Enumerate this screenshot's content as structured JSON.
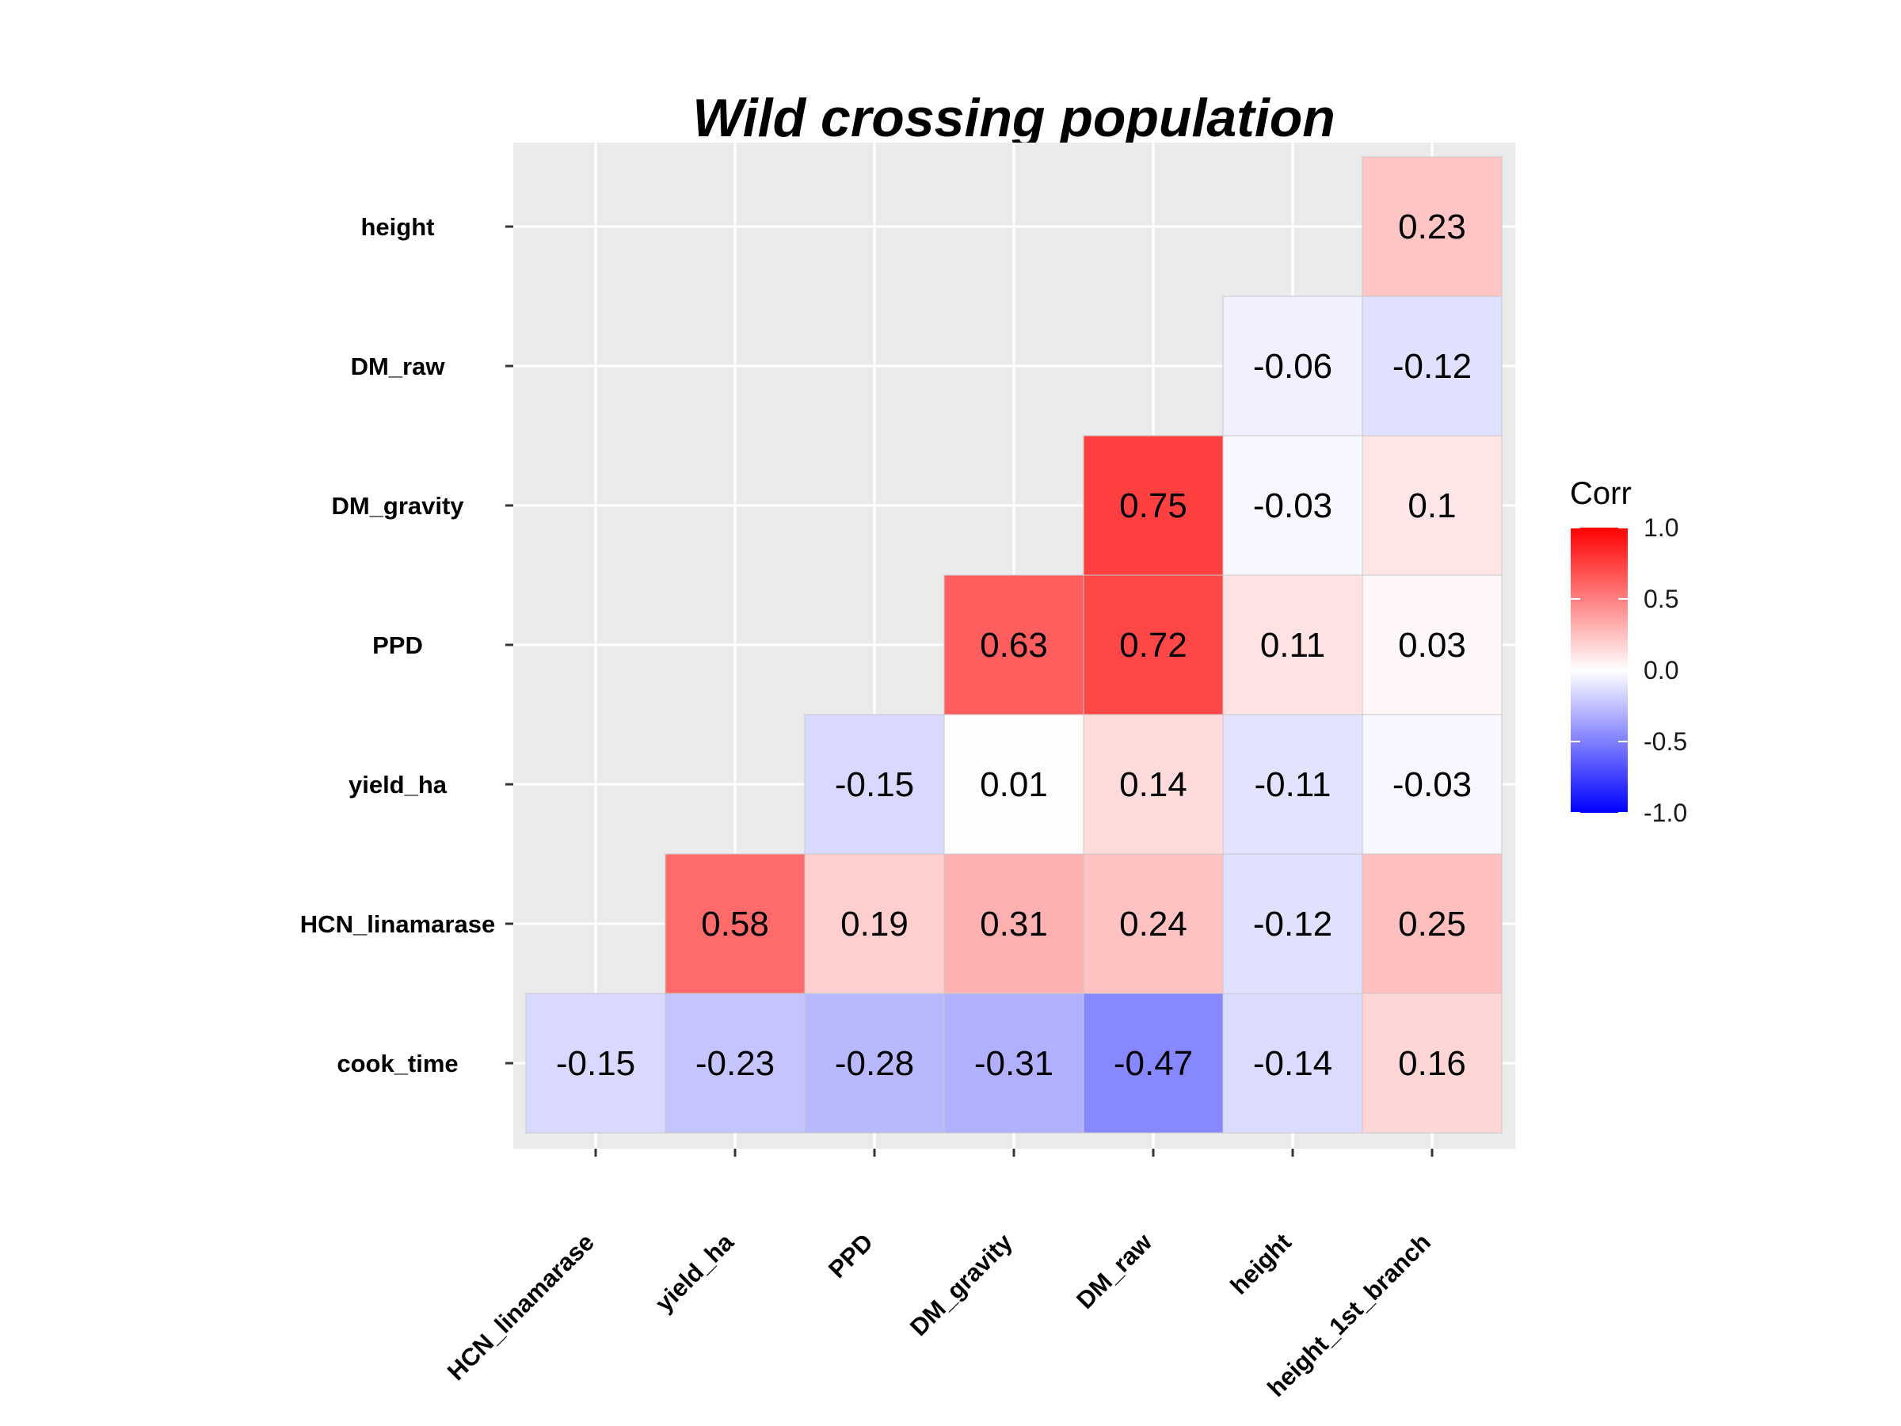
{
  "chart_data": {
    "type": "heatmap",
    "title": "Wild crossing population",
    "x_categories": [
      "HCN_linamarase",
      "yield_ha",
      "PPD",
      "DM_gravity",
      "DM_raw",
      "height",
      "height_1st_branch"
    ],
    "y_categories": [
      "cook_time",
      "HCN_linamarase",
      "yield_ha",
      "PPD",
      "DM_gravity",
      "DM_raw",
      "height"
    ],
    "cells": [
      {
        "x": "HCN_linamarase",
        "y": "cook_time",
        "value": -0.15,
        "label": "-0.15"
      },
      {
        "x": "yield_ha",
        "y": "cook_time",
        "value": -0.23,
        "label": "-0.23"
      },
      {
        "x": "PPD",
        "y": "cook_time",
        "value": -0.28,
        "label": "-0.28"
      },
      {
        "x": "DM_gravity",
        "y": "cook_time",
        "value": -0.31,
        "label": "-0.31"
      },
      {
        "x": "DM_raw",
        "y": "cook_time",
        "value": -0.47,
        "label": "-0.47"
      },
      {
        "x": "height",
        "y": "cook_time",
        "value": -0.14,
        "label": "-0.14"
      },
      {
        "x": "height_1st_branch",
        "y": "cook_time",
        "value": 0.16,
        "label": "0.16"
      },
      {
        "x": "yield_ha",
        "y": "HCN_linamarase",
        "value": 0.58,
        "label": "0.58"
      },
      {
        "x": "PPD",
        "y": "HCN_linamarase",
        "value": 0.19,
        "label": "0.19"
      },
      {
        "x": "DM_gravity",
        "y": "HCN_linamarase",
        "value": 0.31,
        "label": "0.31"
      },
      {
        "x": "DM_raw",
        "y": "HCN_linamarase",
        "value": 0.24,
        "label": "0.24"
      },
      {
        "x": "height",
        "y": "HCN_linamarase",
        "value": -0.12,
        "label": "-0.12"
      },
      {
        "x": "height_1st_branch",
        "y": "HCN_linamarase",
        "value": 0.25,
        "label": "0.25"
      },
      {
        "x": "PPD",
        "y": "yield_ha",
        "value": -0.15,
        "label": "-0.15"
      },
      {
        "x": "DM_gravity",
        "y": "yield_ha",
        "value": 0.01,
        "label": "0.01"
      },
      {
        "x": "DM_raw",
        "y": "yield_ha",
        "value": 0.14,
        "label": "0.14"
      },
      {
        "x": "height",
        "y": "yield_ha",
        "value": -0.11,
        "label": "-0.11"
      },
      {
        "x": "height_1st_branch",
        "y": "yield_ha",
        "value": -0.03,
        "label": "-0.03"
      },
      {
        "x": "DM_gravity",
        "y": "PPD",
        "value": 0.63,
        "label": "0.63"
      },
      {
        "x": "DM_raw",
        "y": "PPD",
        "value": 0.72,
        "label": "0.72"
      },
      {
        "x": "height",
        "y": "PPD",
        "value": 0.11,
        "label": "0.11"
      },
      {
        "x": "height_1st_branch",
        "y": "PPD",
        "value": 0.03,
        "label": "0.03"
      },
      {
        "x": "DM_raw",
        "y": "DM_gravity",
        "value": 0.75,
        "label": "0.75"
      },
      {
        "x": "height",
        "y": "DM_gravity",
        "value": -0.03,
        "label": "-0.03"
      },
      {
        "x": "height_1st_branch",
        "y": "DM_gravity",
        "value": 0.1,
        "label": "0.1"
      },
      {
        "x": "height",
        "y": "DM_raw",
        "value": -0.06,
        "label": "-0.06"
      },
      {
        "x": "height_1st_branch",
        "y": "DM_raw",
        "value": -0.12,
        "label": "-0.12"
      },
      {
        "x": "height_1st_branch",
        "y": "height",
        "value": 0.23,
        "label": "0.23"
      }
    ],
    "legend": {
      "title": "Corr",
      "placement": "right",
      "range": [
        -1.0,
        1.0
      ],
      "ticks": [
        1.0,
        0.5,
        0.0,
        -0.5,
        -1.0
      ],
      "tick_labels": [
        "1.0",
        "0.5",
        "0.0",
        "-0.5",
        "-1.0"
      ],
      "low_color": "#0000ff",
      "mid_color": "#ffffff",
      "high_color": "#ff0000"
    },
    "grid": true,
    "panel_background": "#ebebeb",
    "gridline_color": "#ffffff",
    "cell_border_color": "#c8c8c8"
  }
}
